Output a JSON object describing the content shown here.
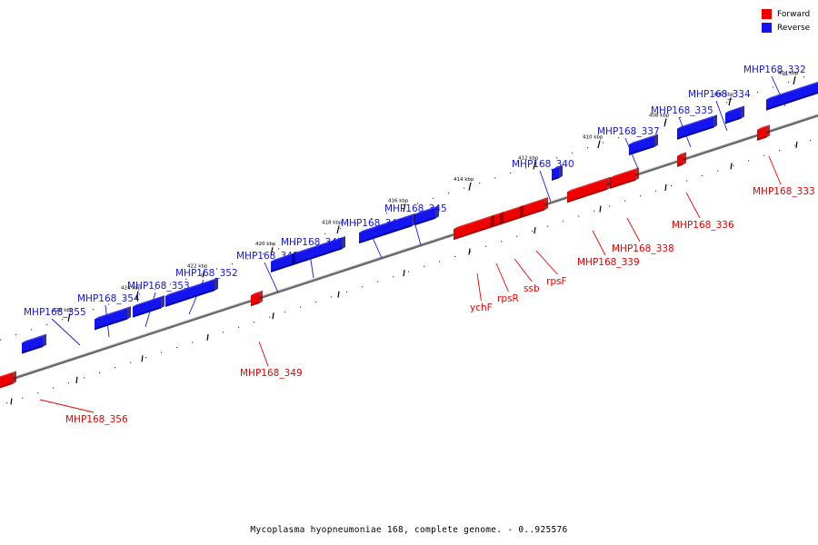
{
  "colors": {
    "forward": "#ee0000",
    "reverse": "#1414ee",
    "backbone": "#777777"
  },
  "legend": [
    {
      "label": "Forward",
      "color": "#ee0000"
    },
    {
      "label": "Reverse",
      "color": "#1414ee"
    }
  ],
  "caption": "Mycoplasma hyopneumoniae 168, complete genome. - 0..925576",
  "kbp_ticks": [
    "404 kbp",
    "406 kbp",
    "408 kbp",
    "410 kbp",
    "412 kbp",
    "414 kbp",
    "416 kbp",
    "418 kbp",
    "420 kbp",
    "422 kbp",
    "424 kbp",
    "426 kbp"
  ],
  "genes": [
    {
      "id": "MHP168_332",
      "strand": "reverse"
    },
    {
      "id": "MHP168_333",
      "strand": "forward"
    },
    {
      "id": "MHP168_334",
      "strand": "reverse"
    },
    {
      "id": "MHP168_335",
      "strand": "reverse"
    },
    {
      "id": "MHP168_336",
      "strand": "forward"
    },
    {
      "id": "MHP168_337",
      "strand": "reverse"
    },
    {
      "id": "MHP168_338",
      "strand": "forward"
    },
    {
      "id": "MHP168_339",
      "strand": "forward"
    },
    {
      "id": "MHP168_340",
      "strand": "reverse"
    },
    {
      "id": "rpsF",
      "strand": "forward"
    },
    {
      "id": "ssb",
      "strand": "forward"
    },
    {
      "id": "rpsR",
      "strand": "forward"
    },
    {
      "id": "ychF",
      "strand": "forward"
    },
    {
      "id": "MHP168_345",
      "strand": "reverse"
    },
    {
      "id": "MHP168_346",
      "strand": "reverse"
    },
    {
      "id": "MHP168_347",
      "strand": "reverse"
    },
    {
      "id": "MHP168_348",
      "strand": "reverse"
    },
    {
      "id": "MHP168_349",
      "strand": "forward"
    },
    {
      "id": "MHP168_352",
      "strand": "reverse"
    },
    {
      "id": "MHP168_353",
      "strand": "reverse"
    },
    {
      "id": "MHP168_354",
      "strand": "reverse"
    },
    {
      "id": "MHP168_355",
      "strand": "reverse"
    },
    {
      "id": "MHP168_356",
      "strand": "forward"
    }
  ]
}
